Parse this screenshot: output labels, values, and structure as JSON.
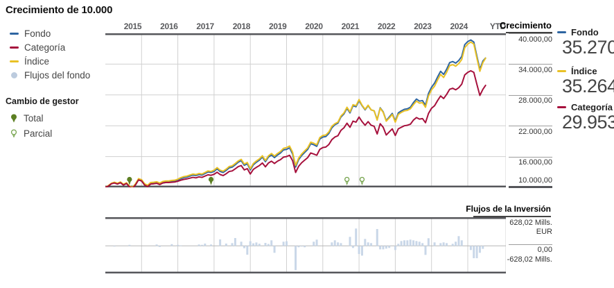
{
  "title": "Crecimiento de 10.000",
  "growth_header": "Crecimiento",
  "flows_header": "Flujos de la Inversión",
  "left_legend": {
    "items": [
      {
        "label": "Fondo",
        "icon": "dash",
        "color": "#2e65a1"
      },
      {
        "label": "Categoría",
        "icon": "dash",
        "color": "#a6103c"
      },
      {
        "label": "Índice",
        "icon": "dash",
        "color": "#e9c125"
      },
      {
        "label": "Flujos del fondo",
        "icon": "dot",
        "color": "#bccbde"
      }
    ]
  },
  "manager_legend": {
    "title": "Cambio de gestor",
    "items": [
      {
        "label": "Total",
        "style": "filled"
      },
      {
        "label": "Parcial",
        "style": "outline"
      }
    ]
  },
  "summary": [
    {
      "label": "Fondo",
      "value": "35.270",
      "color": "#2e65a1"
    },
    {
      "label": "Índice",
      "value": "35.264",
      "color": "#e9c125"
    },
    {
      "label": "Categoría",
      "value": "29.953",
      "color": "#a6103c"
    }
  ],
  "colors": {
    "fondo": "#2e65a1",
    "indice": "#e9c125",
    "categoria": "#a6103c",
    "flows_bar": "#c9d7e8",
    "pin_filled": "#5c7f22",
    "pin_outline": "#73a24a",
    "grid": "#d0d0d0",
    "frame": "#55565a",
    "zero_line": "#b6b6b6"
  },
  "chart_data": {
    "type": "line",
    "title": "Crecimiento de 10.000",
    "start_month": "2014-12",
    "frequency": "monthly",
    "ylim": [
      10000,
      40000
    ],
    "y_tick_labels": [
      "40.000,00",
      "34.000,00",
      "28.000,00",
      "22.000,00",
      "16.000,00",
      "10.000,00"
    ],
    "x_labels": [
      "2015",
      "2016",
      "2017",
      "2018",
      "2019",
      "2020",
      "2021",
      "2022",
      "2023",
      "2024",
      "YTD"
    ],
    "series": [
      {
        "name": "Fondo",
        "color": "#2e65a1",
        "final_value": 35270,
        "values": [
          10000,
          10300,
          10750,
          10900,
          10700,
          10950,
          10500,
          10800,
          10150,
          9900,
          10600,
          11600,
          11400,
          10600,
          10300,
          10800,
          10850,
          10950,
          10700,
          11000,
          11100,
          11100,
          11200,
          11250,
          11400,
          11700,
          11900,
          12000,
          12200,
          12400,
          12300,
          12500,
          12400,
          12700,
          13000,
          12900,
          13100,
          13600,
          13100,
          12900,
          13300,
          13800,
          13950,
          14400,
          14900,
          15200,
          14300,
          14600,
          13400,
          14400,
          14900,
          15300,
          15900,
          15000,
          15900,
          16300,
          15800,
          16300,
          16700,
          17300,
          17400,
          17700,
          16500,
          13950,
          15400,
          16200,
          16800,
          17400,
          18500,
          18300,
          18000,
          19400,
          19800,
          19900,
          20500,
          21600,
          22200,
          22500,
          23700,
          24300,
          25400,
          24500,
          25900,
          25700,
          26900,
          25900,
          25100,
          25900,
          25100,
          24900,
          23200,
          25500,
          24700,
          23000,
          23700,
          24400,
          22900,
          24500,
          24900,
          25200,
          25300,
          25600,
          26500,
          27200,
          26800,
          26900,
          26000,
          28300,
          29500,
          30300,
          31500,
          32600,
          32000,
          33000,
          34300,
          34500,
          34200,
          34700,
          35500,
          37800,
          38400,
          38700,
          38300,
          35600,
          33000,
          34600,
          35270
        ]
      },
      {
        "name": "Índice",
        "color": "#e9c125",
        "final_value": 35264,
        "values": [
          10000,
          10350,
          10800,
          11000,
          10800,
          11050,
          10600,
          10900,
          10250,
          10000,
          10700,
          11700,
          11500,
          10700,
          10400,
          10950,
          11000,
          11100,
          10850,
          11150,
          11250,
          11250,
          11350,
          11400,
          11600,
          11900,
          12100,
          12200,
          12400,
          12600,
          12500,
          12700,
          12600,
          12900,
          13200,
          13100,
          13350,
          13850,
          13350,
          13150,
          13550,
          14050,
          14200,
          14650,
          15150,
          15450,
          14550,
          14850,
          13650,
          14650,
          15150,
          15550,
          16150,
          15250,
          16150,
          16600,
          16100,
          16600,
          17000,
          17600,
          17750,
          18050,
          16850,
          14300,
          15700,
          16500,
          17100,
          17700,
          18800,
          18600,
          18300,
          19700,
          20100,
          20200,
          20800,
          21900,
          22400,
          22700,
          23900,
          24500,
          25600,
          24700,
          26100,
          25900,
          27100,
          26000,
          25200,
          26000,
          25100,
          24900,
          23100,
          25400,
          24600,
          22900,
          23500,
          24200,
          22700,
          24200,
          24600,
          24900,
          25000,
          25300,
          26100,
          26800,
          26400,
          26500,
          25600,
          27800,
          29000,
          29700,
          30900,
          32000,
          31400,
          32400,
          33700,
          33900,
          33600,
          34100,
          34900,
          37200,
          37900,
          38300,
          37900,
          35200,
          32600,
          34300,
          35264
        ]
      },
      {
        "name": "Categoría",
        "color": "#a6103c",
        "final_value": 29953,
        "values": [
          10000,
          10250,
          10700,
          10850,
          10650,
          10900,
          10450,
          10750,
          10100,
          9850,
          10500,
          11450,
          11250,
          10450,
          10150,
          10650,
          10700,
          10800,
          10550,
          10850,
          10950,
          10950,
          11000,
          11050,
          11200,
          11400,
          11550,
          11650,
          11800,
          11950,
          11850,
          12050,
          11950,
          12200,
          12450,
          12350,
          12550,
          12950,
          12500,
          12300,
          12650,
          13100,
          13200,
          13600,
          14050,
          14250,
          13400,
          13650,
          12600,
          13500,
          13900,
          14250,
          14750,
          14000,
          14750,
          15100,
          14650,
          15100,
          15400,
          15900,
          16000,
          16250,
          15200,
          12900,
          14100,
          14800,
          15300,
          15800,
          16700,
          16500,
          16250,
          17400,
          17750,
          17850,
          18350,
          19300,
          19800,
          20050,
          21100,
          21600,
          22500,
          21700,
          22900,
          22700,
          23700,
          22800,
          22100,
          22800,
          22100,
          21900,
          20400,
          22400,
          21700,
          20200,
          20800,
          21400,
          20100,
          21400,
          21700,
          22000,
          22100,
          22300,
          23100,
          23600,
          23300,
          23400,
          22600,
          24400,
          25400,
          25900,
          26900,
          27800,
          27300,
          28100,
          29100,
          29300,
          29000,
          29400,
          30100,
          31900,
          32400,
          32700,
          32400,
          30100,
          27900,
          29100,
          29953
        ]
      }
    ],
    "manager_changes": [
      {
        "index": 8,
        "type": "total"
      },
      {
        "index": 35,
        "type": "total"
      },
      {
        "index": 80,
        "type": "parcial"
      },
      {
        "index": 85,
        "type": "parcial"
      }
    ],
    "flows": {
      "name": "Flujos de la Inversión",
      "type": "bar",
      "unit": "Mills. EUR",
      "ylim": [
        -628.02,
        628.02
      ],
      "y_tick_labels": [
        "628,02 Mills.",
        "EUR",
        "0,00",
        "-628,02 Mills."
      ],
      "bars": [
        [
          3,
          -16
        ],
        [
          8,
          25
        ],
        [
          17,
          33
        ],
        [
          18,
          -25
        ],
        [
          22,
          41
        ],
        [
          24,
          25
        ],
        [
          25,
          11
        ],
        [
          31,
          33
        ],
        [
          32,
          25
        ],
        [
          33,
          54
        ],
        [
          35,
          33
        ],
        [
          38,
          152
        ],
        [
          40,
          54
        ],
        [
          42,
          65
        ],
        [
          43,
          184
        ],
        [
          45,
          98
        ],
        [
          46,
          -54
        ],
        [
          47,
          -207
        ],
        [
          48,
          109
        ],
        [
          49,
          60
        ],
        [
          50,
          80
        ],
        [
          51,
          50
        ],
        [
          53,
          70
        ],
        [
          54,
          45
        ],
        [
          55,
          131
        ],
        [
          56,
          -163
        ],
        [
          59,
          98
        ],
        [
          60,
          109
        ],
        [
          63,
          -571
        ],
        [
          64,
          -33
        ],
        [
          65,
          -16
        ],
        [
          66,
          -33
        ],
        [
          69,
          98
        ],
        [
          70,
          147
        ],
        [
          75,
          82
        ],
        [
          76,
          131
        ],
        [
          77,
          82
        ],
        [
          78,
          65
        ],
        [
          81,
          212
        ],
        [
          82,
          -49
        ],
        [
          83,
          408
        ],
        [
          84,
          -191
        ],
        [
          85,
          -229
        ],
        [
          86,
          163
        ],
        [
          87,
          82
        ],
        [
          88,
          65
        ],
        [
          90,
          396
        ],
        [
          91,
          -82
        ],
        [
          92,
          -82
        ],
        [
          93,
          -65
        ],
        [
          94,
          -49
        ],
        [
          96,
          -98
        ],
        [
          97,
          49
        ],
        [
          98,
          114
        ],
        [
          99,
          131
        ],
        [
          100,
          131
        ],
        [
          101,
          147
        ],
        [
          102,
          131
        ],
        [
          103,
          114
        ],
        [
          104,
          98
        ],
        [
          105,
          65
        ],
        [
          106,
          -212
        ],
        [
          107,
          180
        ],
        [
          109,
          82
        ],
        [
          111,
          65
        ],
        [
          112,
          82
        ],
        [
          113,
          65
        ],
        [
          115,
          49
        ],
        [
          116,
          98
        ],
        [
          117,
          229
        ],
        [
          118,
          131
        ],
        [
          121,
          -98
        ],
        [
          122,
          -290
        ],
        [
          123,
          -290
        ],
        [
          124,
          -163
        ],
        [
          125,
          -70
        ]
      ]
    }
  }
}
